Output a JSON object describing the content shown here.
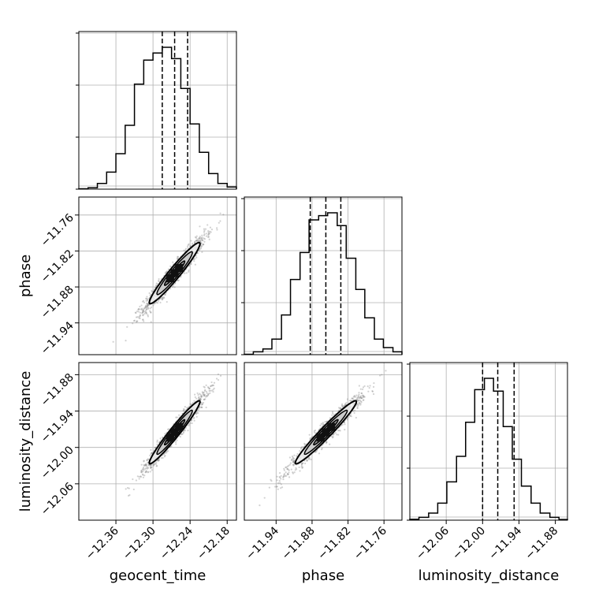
{
  "chart_data": {
    "type": "corner",
    "parameters": [
      {
        "name": "geocent_time",
        "ticks": [
          -12.36,
          -12.3,
          -12.24,
          -12.18
        ],
        "range": [
          -12.42,
          -12.165
        ],
        "quantiles": [
          -12.285,
          -12.265,
          -12.244
        ]
      },
      {
        "name": "phase",
        "ticks": [
          -11.94,
          -11.88,
          -11.82,
          -11.76
        ],
        "range": [
          -11.993,
          -11.73
        ],
        "quantiles": [
          -11.883,
          -11.857,
          -11.832
        ]
      },
      {
        "name": "luminosity_distance",
        "ticks": [
          -12.06,
          -12.0,
          -11.94,
          -11.88
        ],
        "range": [
          -12.12,
          -11.86
        ],
        "quantiles": [
          -12.0,
          -11.975,
          -11.948
        ]
      }
    ],
    "tick_text": {
      "geocent_time": [
        "−12.36",
        "−12.30",
        "−12.24",
        "−12.18"
      ],
      "phase": [
        "−11.94",
        "−11.88",
        "−11.82",
        "−11.76"
      ],
      "luminosity_distance": [
        "−12.06",
        "−12.00",
        "−11.94",
        "−11.88"
      ]
    },
    "histograms": [
      {
        "parameter": "geocent_time",
        "bin_edges": [
          -12.42,
          -12.405,
          -12.39,
          -12.375,
          -12.36,
          -12.345,
          -12.33,
          -12.315,
          -12.3,
          -12.285,
          -12.27,
          -12.255,
          -12.24,
          -12.225,
          -12.21,
          -12.195,
          -12.18,
          -12.165
        ],
        "counts": [
          0.003,
          0.01,
          0.04,
          0.12,
          0.25,
          0.45,
          0.74,
          0.91,
          0.96,
          1.0,
          0.92,
          0.71,
          0.46,
          0.26,
          0.11,
          0.04,
          0.015
        ]
      },
      {
        "parameter": "phase",
        "bin_edges": [
          -11.993,
          -11.978,
          -11.962,
          -11.947,
          -11.931,
          -11.916,
          -11.9,
          -11.885,
          -11.869,
          -11.854,
          -11.838,
          -11.823,
          -11.807,
          -11.792,
          -11.776,
          -11.761,
          -11.745,
          -11.73
        ],
        "counts": [
          0.003,
          0.02,
          0.04,
          0.11,
          0.28,
          0.53,
          0.72,
          0.95,
          0.98,
          1.0,
          0.91,
          0.68,
          0.46,
          0.26,
          0.11,
          0.05,
          0.02
        ]
      },
      {
        "parameter": "luminosity_distance",
        "bin_edges": [
          -12.12,
          -12.105,
          -12.089,
          -12.074,
          -12.059,
          -12.043,
          -12.028,
          -12.013,
          -11.997,
          -11.982,
          -11.966,
          -11.951,
          -11.936,
          -11.92,
          -11.905,
          -11.889,
          -11.874,
          -11.86
        ],
        "counts": [
          0.006,
          0.02,
          0.05,
          0.12,
          0.27,
          0.45,
          0.69,
          0.92,
          1.0,
          0.91,
          0.66,
          0.43,
          0.24,
          0.12,
          0.05,
          0.02,
          0.005
        ]
      }
    ],
    "correlation": {
      "phase|geocent_time": 0.96,
      "luminosity_distance|geocent_time": 0.97,
      "luminosity_distance|phase": 0.97
    },
    "grid": true,
    "scatter_color": "#7f7f7f",
    "line_color": "#000000"
  }
}
